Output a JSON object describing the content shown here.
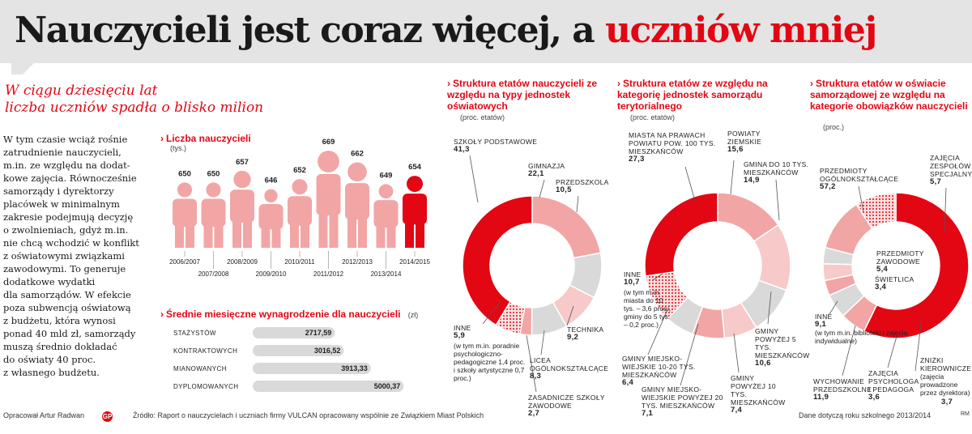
{
  "header": {
    "title_black": "Nauczycieli jest coraz więcej, a",
    "title_red": "uczniów mniej"
  },
  "lead": {
    "line1": "W ciągu dziesięciu lat",
    "line2": "liczba uczniów spadła o blisko milion"
  },
  "body_lines": [
    "W tym czasie wciąż rośnie",
    "zatrudnienie nauczycieli,",
    "m.in. ze względu na dodat-",
    "kowe zajęcia. Równocześnie",
    "samorządy i dyrektorzy",
    "placówek w minimalnym",
    "zakresie podejmują decyzję",
    "o zwolnieniach, gdyż m.in.",
    "nie chcą wchodzić w konflikt",
    "z oświatowymi związkami",
    "zawodowymi. To generuje",
    "dodatkowe wydatki",
    "dla samorządów. W efekcie",
    "poza subwencją oświatową",
    "z budżetu, która wynosi",
    "ponad 40 mld zł, samorządy",
    "muszą średnio dokładać",
    "do oświaty 40 proc.",
    "z własnego budżetu."
  ],
  "colors": {
    "accent": "#e30613",
    "light_red": "#f2a5a5",
    "pale_red": "#f7c9c9",
    "grey": "#d9d9d9",
    "bar_bg": "#d9d9d9"
  },
  "chart_data": [
    {
      "type": "bar",
      "title": "Liczba nauczycieli",
      "unit": "(tys.)",
      "categories": [
        "2006/2007",
        "2007/2008",
        "2008/2009",
        "2009/2010",
        "2010/2011",
        "2011/2012",
        "2012/2013",
        "2013/2014",
        "2014/2015"
      ],
      "values": [
        650,
        650,
        657,
        646,
        652,
        669,
        662,
        649,
        654
      ],
      "highlight": "2014/2015"
    },
    {
      "type": "bar",
      "orientation": "horizontal",
      "title": "Średnie miesięczne wynagrodzenie dla nauczycieli",
      "unit": "(zł)",
      "categories": [
        "STAŻYSTÓW",
        "KONTRAKTOWYCH",
        "MIANOWANYCH",
        "DYPLOMOWANYCH"
      ],
      "values": [
        2717.59,
        3016.52,
        3913.33,
        5000.37
      ],
      "value_labels": [
        "2717,59",
        "3016,52",
        "3913,33",
        "5000,37"
      ]
    },
    {
      "type": "pie",
      "title": "Struktura etatów nauczycieli ze względu na typy jednostek oświatowych",
      "unit": "(proc. etatów)",
      "labels": [
        "SZKOŁY PODSTAWOWE",
        "GIMNAZJA",
        "PRZEDSZKOLA",
        "TECHNIKA",
        "LICEA OGÓLNOKSZTAŁCĄCE",
        "ZASADNICZE SZKOŁY ZAWODOWE",
        "INNE"
      ],
      "values": [
        41.3,
        22.1,
        10.5,
        9.2,
        8.3,
        2.7,
        5.9
      ],
      "value_labels": [
        "41,3",
        "22,1",
        "10,5",
        "9,2",
        "8,3",
        "2,7",
        "5,9"
      ],
      "note": "(w tym m.in. poradnie psychologiczno-pedagogiczne 1,4 proc. i szkoły artystyczne 0,7 proc.)"
    },
    {
      "type": "pie",
      "title": "Struktura etatów ze względu na kategorię jednostek samorządu terytorialnego",
      "unit": "(proc. etatów)",
      "labels": [
        "MIASTA NA PRAWACH POWIATU POW. 100 TYS. MIESZKAŃCÓW",
        "POWIATY ZIEMSKIE",
        "GMINA DO 10 TYS. MIESZKAŃCÓW",
        "GMINY POWYŻEJ 5 TYS. MIESZKAŃCÓW",
        "GMINY POWYŻEJ 10 TYS. MIESZKAŃCÓW",
        "GMINY MIEJSKO-WIEJSKIE POWYŻEJ 20 TYS. MIESZKAŃCÓW",
        "GMINY MIEJSKO-WIEJSKIE 10-20 TYS. MIESZKAŃCÓW",
        "INNE"
      ],
      "values": [
        27.3,
        15.6,
        14.9,
        10.6,
        7.4,
        7.1,
        6.4,
        10.7
      ],
      "value_labels": [
        "27,3",
        "15,6",
        "14,9",
        "10,6",
        "7,4",
        "7,1",
        "6,4",
        "10,7"
      ],
      "note": "(w tym m.in. miasta do 10 tys. – 3,6 proc., gminy do 5 tys. – 0,2 proc.)"
    },
    {
      "type": "pie",
      "title": "Struktura etatów w oświacie samorządowej ze względu na kategorie obowiązków nauczycieli",
      "unit": "(proc.)",
      "labels": [
        "PRZEDMIOTY OGÓLNOKSZTAŁCĄCE",
        "ZAJĘCIA ZESPOŁÓW SPECJALNYCH",
        "PRZEDMIOTY ZAWODOWE",
        "ŚWIETLICA",
        "ZNIŻKI KIEROWNICZE",
        "ZAJĘCIA PSYCHOLOGA I PEDAGOGA",
        "WYCHOWANIE PRZEDSZKOLNE",
        "INNE"
      ],
      "values": [
        57.2,
        5.7,
        5.4,
        3.4,
        3.7,
        3.6,
        11.9,
        9.1
      ],
      "value_labels": [
        "57,2",
        "5,7",
        "5,4",
        "3,4",
        "3,7",
        "3,6",
        "11,9",
        "9,1"
      ],
      "notes": {
        "zniżki": "(zajęcia prowadzone przez dyrektora)",
        "inne": "(w tym m.in. biblioteki i zajęcia indywidualne)"
      }
    }
  ],
  "footer": {
    "author": "Opracował Artur Radwan",
    "logo": "GP",
    "source": "Źródło: Raport o nauczycielach i uczniach firmy VULCAN opracowany wspólnie ze Związkiem Miast Polskich",
    "note": "Dane dotyczą roku szkolnego 2013/2014",
    "initials": "RM"
  }
}
